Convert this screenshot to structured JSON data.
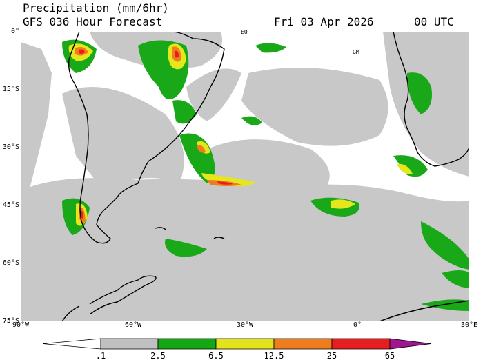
{
  "header": {
    "title": "Precipitation (mm/6hr)",
    "subtitle": "GFS 036 Hour Forecast",
    "date": "Fri 03 Apr 2026",
    "time": "00 UTC"
  },
  "map": {
    "lat_labels": [
      "0°",
      "15°S",
      "30°S",
      "45°S",
      "60°S",
      "75°S"
    ],
    "lon_labels": [
      "90°W",
      "60°W",
      "30°W",
      "0°",
      "30°E"
    ],
    "annotations": [
      "EQ",
      "GM"
    ],
    "region": "South America and South Atlantic"
  },
  "colorbar": {
    "labels": [
      ".1",
      "2.5",
      "6.5",
      "12.5",
      "25",
      "65"
    ],
    "colors": [
      "#ffffff",
      "#c0c0c0",
      "#13a813",
      "#e3e31a",
      "#f07d1d",
      "#e81e1e",
      "#a0168e"
    ]
  }
}
